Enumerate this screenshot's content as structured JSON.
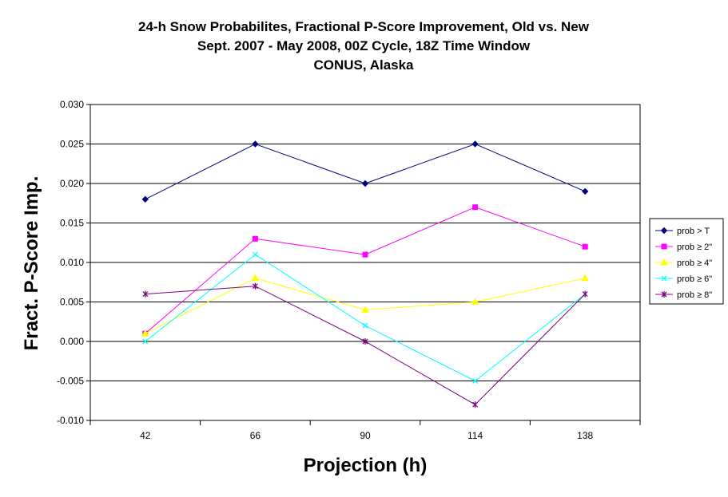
{
  "chart_data": {
    "type": "line",
    "title_lines": [
      "24-h Snow Probabilites, Fractional P-Score Improvement, Old vs. New",
      "Sept. 2007 - May 2008, 00Z Cycle, 18Z Time Window",
      "CONUS, Alaska"
    ],
    "xlabel": "Projection (h)",
    "ylabel": "Fract. P-Score Imp.",
    "categories": [
      "42",
      "66",
      "90",
      "114",
      "138"
    ],
    "ylim": [
      -0.01,
      0.03
    ],
    "y_ticks": [
      "0.030",
      "0.025",
      "0.020",
      "0.015",
      "0.010",
      "0.005",
      "0.000",
      "-0.005",
      "-0.010"
    ],
    "y_tick_values": [
      0.03,
      0.025,
      0.02,
      0.015,
      0.01,
      0.005,
      0.0,
      -0.005,
      -0.01
    ],
    "grid": "horizontal",
    "legend_position": "right",
    "series": [
      {
        "name": "prob > T",
        "color": "#000080",
        "marker": "diamond",
        "values": [
          0.018,
          0.025,
          0.02,
          0.025,
          0.019
        ]
      },
      {
        "name": "prob ≥ 2\"",
        "color": "#ff00ff",
        "marker": "square",
        "values": [
          0.001,
          0.013,
          0.011,
          0.017,
          0.012
        ]
      },
      {
        "name": "prob ≥ 4\"",
        "color": "#ffff00",
        "marker": "triangle",
        "values": [
          0.001,
          0.008,
          0.004,
          0.005,
          0.008
        ]
      },
      {
        "name": "prob ≥ 6\"",
        "color": "#00ffff",
        "marker": "x",
        "values": [
          0.0,
          0.011,
          0.002,
          -0.005,
          0.006
        ]
      },
      {
        "name": "prob ≥ 8\"",
        "color": "#800080",
        "marker": "star",
        "values": [
          0.006,
          0.007,
          0.0,
          -0.008,
          0.006
        ]
      }
    ]
  }
}
